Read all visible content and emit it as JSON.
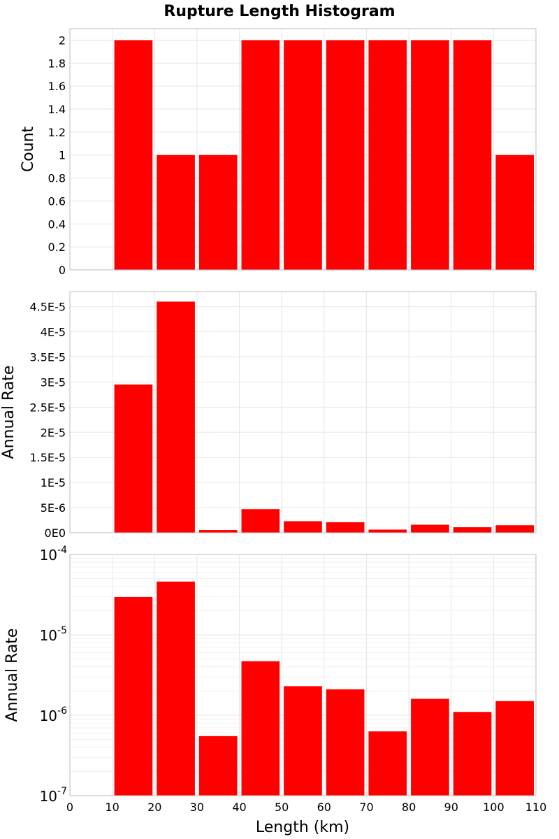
{
  "chart_data": {
    "title": "Rupture Length Histogram",
    "xlabel": "Length (km)",
    "xlim": [
      0,
      110
    ],
    "x_ticks": [
      "0",
      "10",
      "20",
      "30",
      "40",
      "50",
      "60",
      "70",
      "80",
      "90",
      "100",
      "110"
    ],
    "bin_width": 10,
    "bar_color": "#ff0000",
    "grid": true,
    "panels": [
      {
        "type": "bar",
        "ylabel": "Count",
        "yscale": "linear",
        "ylim": [
          0,
          2.1
        ],
        "y_ticks": [
          {
            "v": 0,
            "label": "0"
          },
          {
            "v": 0.2,
            "label": "0.2"
          },
          {
            "v": 0.4,
            "label": "0.4"
          },
          {
            "v": 0.6,
            "label": "0.6"
          },
          {
            "v": 0.8,
            "label": "0.8"
          },
          {
            "v": 1,
            "label": "1"
          },
          {
            "v": 1.2,
            "label": "1.2"
          },
          {
            "v": 1.4,
            "label": "1.4"
          },
          {
            "v": 1.6,
            "label": "1.6"
          },
          {
            "v": 1.8,
            "label": "1.8"
          },
          {
            "v": 2,
            "label": "2"
          }
        ],
        "bins": [
          10,
          20,
          30,
          40,
          50,
          60,
          70,
          80,
          90,
          100
        ],
        "values": [
          2,
          1,
          1,
          2,
          2,
          2,
          2,
          2,
          2,
          1
        ]
      },
      {
        "type": "bar",
        "ylabel": "Annual Rate",
        "yscale": "linear",
        "ylim": [
          0,
          4.8e-05
        ],
        "y_ticks": [
          {
            "v": 0,
            "label": "0E0"
          },
          {
            "v": 5e-06,
            "label": "5E-6"
          },
          {
            "v": 1e-05,
            "label": "1E-5"
          },
          {
            "v": 1.5e-05,
            "label": "1.5E-5"
          },
          {
            "v": 2e-05,
            "label": "2E-5"
          },
          {
            "v": 2.5e-05,
            "label": "2.5E-5"
          },
          {
            "v": 3e-05,
            "label": "3E-5"
          },
          {
            "v": 3.5e-05,
            "label": "3.5E-5"
          },
          {
            "v": 4e-05,
            "label": "4E-5"
          },
          {
            "v": 4.5e-05,
            "label": "4.5E-5"
          }
        ],
        "bins": [
          10,
          20,
          30,
          40,
          50,
          60,
          70,
          80,
          90,
          100
        ],
        "values": [
          2.95e-05,
          4.6e-05,
          5.5e-07,
          4.7e-06,
          2.3e-06,
          2.1e-06,
          6.3e-07,
          1.6e-06,
          1.1e-06,
          1.5e-06
        ]
      },
      {
        "type": "bar",
        "ylabel": "Annual Rate",
        "yscale": "log",
        "ylim": [
          1e-07,
          0.0001
        ],
        "y_ticks": [
          {
            "v": 1e-07,
            "base": "10",
            "exp": "-7"
          },
          {
            "v": 1e-06,
            "base": "10",
            "exp": "-6"
          },
          {
            "v": 1e-05,
            "base": "10",
            "exp": "-5"
          },
          {
            "v": 0.0001,
            "base": "10",
            "exp": "-4"
          }
        ],
        "bins": [
          10,
          20,
          30,
          40,
          50,
          60,
          70,
          80,
          90,
          100
        ],
        "values": [
          2.95e-05,
          4.6e-05,
          5.5e-07,
          4.7e-06,
          2.3e-06,
          2.1e-06,
          6.3e-07,
          1.6e-06,
          1.1e-06,
          1.5e-06
        ]
      }
    ]
  }
}
